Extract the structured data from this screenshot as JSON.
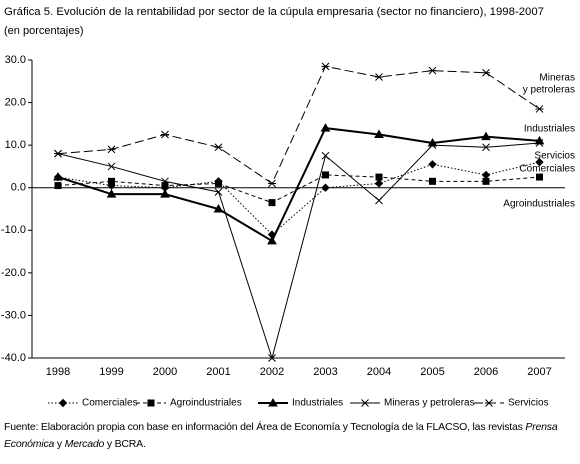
{
  "chart_data": {
    "type": "line",
    "title": "Gráfica 5. Evolución de la rentabilidad por sector de la cúpula empresaria (sector no financiero), 1998-2007",
    "subtitle": "(en porcentajes)",
    "categories": [
      "1998",
      "1999",
      "2000",
      "2001",
      "2002",
      "2003",
      "2004",
      "2005",
      "2006",
      "2007"
    ],
    "series": [
      {
        "name": "Comerciales",
        "color": "#000000",
        "values": [
          2.5,
          0.5,
          0,
          1.5,
          -11,
          0,
          1,
          5.5,
          3,
          6
        ]
      },
      {
        "name": "Agroindustriales",
        "color": "#000000",
        "values": [
          0.5,
          1.5,
          0.5,
          1,
          -3.5,
          3,
          2.5,
          1.5,
          1.5,
          2.5
        ]
      },
      {
        "name": "Industriales",
        "color": "#000000",
        "values": [
          2.5,
          -1.5,
          -1.5,
          -5,
          -12.5,
          14,
          12.5,
          10.5,
          12,
          11
        ]
      },
      {
        "name": "Mineras y petroleras",
        "color": "#000000",
        "values": [
          8,
          5,
          1.5,
          -1,
          -40,
          7.5,
          -3,
          10,
          9.5,
          10.5
        ]
      },
      {
        "name": "Servicios",
        "color": "#000000",
        "values": [
          8,
          9,
          12.5,
          9.5,
          1,
          28.5,
          26,
          27.5,
          27,
          18.5
        ]
      }
    ],
    "ylim": [
      -40,
      30
    ],
    "yticks": [
      {
        "value": -40,
        "label": "-40.0"
      },
      {
        "value": -30,
        "label": "-30.0"
      },
      {
        "value": -20,
        "label": "-20.0"
      },
      {
        "value": -10,
        "label": "-10.0"
      },
      {
        "value": 0,
        "label": "0.0"
      },
      {
        "value": 10,
        "label": "10.0"
      },
      {
        "value": 20,
        "label": "20.0"
      },
      {
        "value": 30,
        "label": "30.0"
      }
    ],
    "grid": false,
    "legend": "bottom",
    "annotations": [
      [
        "Mineras",
        "y petroleras"
      ],
      [
        "Industriales"
      ],
      [
        "Servicios"
      ],
      [
        "Comerciales"
      ],
      [
        "Agroindustriales"
      ]
    ],
    "source": [
      "Fuente: Elaboración propia con base en información del Área de Economía y Tecnología de la FLACSO, las revistas ",
      "Prensa Económica",
      " y ",
      "Mercado",
      " y BCRA."
    ]
  }
}
